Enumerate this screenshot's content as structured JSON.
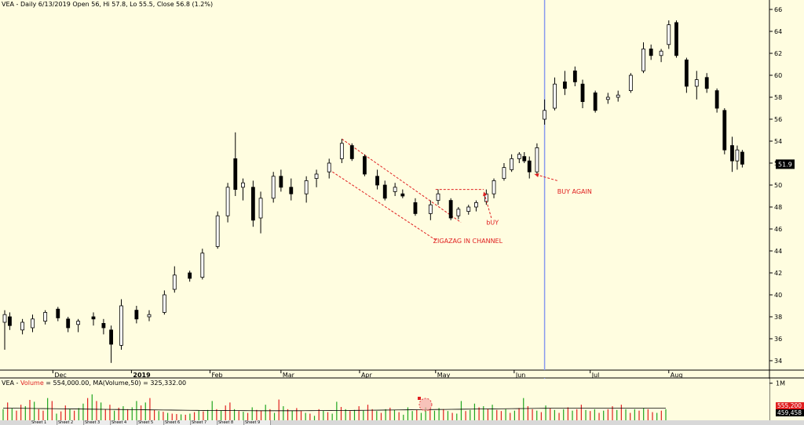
{
  "chart_data": {
    "type": "candlestick",
    "title": "VEA - Daily 6/13/2019 Open 56, Hi 57.8, Lo 55.5, Close 56.8 (1.2%)",
    "y_ticks": [
      "34",
      "36",
      "38",
      "40",
      "42",
      "44",
      "46",
      "48",
      "50",
      "52",
      "54",
      "56",
      "58",
      "60",
      "62",
      "64",
      "66"
    ],
    "ylim": [
      33,
      67
    ],
    "last_price": "51.9",
    "x_labels": [
      "Dec",
      "2019",
      "Feb",
      "Mar",
      "Apr",
      "May",
      "Jun",
      "Jul",
      "Aug"
    ],
    "x_label_dates": [
      "2018-12-01",
      "2019-01-01",
      "2019-02-01",
      "2019-03-01",
      "2019-04-01",
      "2019-05-01",
      "2019-06-01",
      "2019-07-01",
      "2019-08-01"
    ],
    "xlim": [
      "2018-11-12",
      "2019-09-06"
    ],
    "marker_date": "2019-06-13",
    "candles": [
      {
        "date": "2018-11-12",
        "o": 37.5,
        "h": 38.6,
        "l": 35.0,
        "c": 38.2
      },
      {
        "date": "2018-11-14",
        "o": 38.0,
        "h": 38.4,
        "l": 36.8,
        "c": 37.2
      },
      {
        "date": "2018-11-19",
        "o": 36.8,
        "h": 37.8,
        "l": 36.4,
        "c": 37.5
      },
      {
        "date": "2018-11-23",
        "o": 37.0,
        "h": 38.2,
        "l": 36.6,
        "c": 37.8
      },
      {
        "date": "2018-11-28",
        "o": 37.6,
        "h": 38.6,
        "l": 37.3,
        "c": 38.4
      },
      {
        "date": "2018-12-03",
        "o": 38.7,
        "h": 38.9,
        "l": 37.6,
        "c": 37.9
      },
      {
        "date": "2018-12-07",
        "o": 37.8,
        "h": 38.0,
        "l": 36.6,
        "c": 37.0
      },
      {
        "date": "2018-12-11",
        "o": 37.3,
        "h": 37.8,
        "l": 36.6,
        "c": 37.6
      },
      {
        "date": "2018-12-17",
        "o": 38.0,
        "h": 38.4,
        "l": 37.2,
        "c": 37.8
      },
      {
        "date": "2018-12-21",
        "o": 37.4,
        "h": 37.8,
        "l": 36.4,
        "c": 37.0
      },
      {
        "date": "2018-12-24",
        "o": 36.8,
        "h": 37.2,
        "l": 33.8,
        "c": 35.5
      },
      {
        "date": "2018-12-28",
        "o": 35.4,
        "h": 39.6,
        "l": 35.0,
        "c": 39.0
      },
      {
        "date": "2019-01-03",
        "o": 38.6,
        "h": 39.0,
        "l": 37.4,
        "c": 37.8
      },
      {
        "date": "2019-01-08",
        "o": 38.0,
        "h": 38.6,
        "l": 37.6,
        "c": 38.2
      },
      {
        "date": "2019-01-14",
        "o": 38.4,
        "h": 40.4,
        "l": 38.2,
        "c": 40.0
      },
      {
        "date": "2019-01-18",
        "o": 40.5,
        "h": 42.6,
        "l": 40.2,
        "c": 41.8
      },
      {
        "date": "2019-01-24",
        "o": 42.0,
        "h": 42.2,
        "l": 41.2,
        "c": 41.5
      },
      {
        "date": "2019-01-29",
        "o": 41.6,
        "h": 44.2,
        "l": 41.4,
        "c": 43.8
      },
      {
        "date": "2019-02-04",
        "o": 44.4,
        "h": 47.6,
        "l": 44.2,
        "c": 47.2
      },
      {
        "date": "2019-02-08",
        "o": 47.2,
        "h": 50.2,
        "l": 46.6,
        "c": 49.8
      },
      {
        "date": "2019-02-11",
        "o": 52.4,
        "h": 54.8,
        "l": 49.0,
        "c": 49.6
      },
      {
        "date": "2019-02-14",
        "o": 49.8,
        "h": 50.6,
        "l": 48.6,
        "c": 50.2
      },
      {
        "date": "2019-02-18",
        "o": 49.8,
        "h": 50.4,
        "l": 46.2,
        "c": 46.8
      },
      {
        "date": "2019-02-21",
        "o": 47.0,
        "h": 49.4,
        "l": 45.6,
        "c": 48.8
      },
      {
        "date": "2019-02-26",
        "o": 48.8,
        "h": 51.2,
        "l": 48.4,
        "c": 50.8
      },
      {
        "date": "2019-03-01",
        "o": 50.8,
        "h": 51.4,
        "l": 49.4,
        "c": 49.8
      },
      {
        "date": "2019-03-05",
        "o": 49.8,
        "h": 50.6,
        "l": 48.6,
        "c": 49.2
      },
      {
        "date": "2019-03-11",
        "o": 49.2,
        "h": 50.8,
        "l": 48.4,
        "c": 50.4
      },
      {
        "date": "2019-03-15",
        "o": 50.6,
        "h": 51.4,
        "l": 49.8,
        "c": 51.0
      },
      {
        "date": "2019-03-20",
        "o": 51.2,
        "h": 52.4,
        "l": 50.6,
        "c": 52.0
      },
      {
        "date": "2019-03-25",
        "o": 52.4,
        "h": 54.2,
        "l": 52.0,
        "c": 53.8
      },
      {
        "date": "2019-03-29",
        "o": 53.6,
        "h": 53.8,
        "l": 52.2,
        "c": 52.4
      },
      {
        "date": "2019-04-03",
        "o": 52.6,
        "h": 52.8,
        "l": 50.8,
        "c": 51.0
      },
      {
        "date": "2019-04-08",
        "o": 50.8,
        "h": 51.4,
        "l": 49.6,
        "c": 50.0
      },
      {
        "date": "2019-04-11",
        "o": 50.0,
        "h": 50.4,
        "l": 48.6,
        "c": 48.8
      },
      {
        "date": "2019-04-15",
        "o": 49.4,
        "h": 50.2,
        "l": 49.0,
        "c": 49.8
      },
      {
        "date": "2019-04-18",
        "o": 49.2,
        "h": 49.6,
        "l": 48.8,
        "c": 49.0
      },
      {
        "date": "2019-04-23",
        "o": 48.4,
        "h": 48.8,
        "l": 47.2,
        "c": 47.4
      },
      {
        "date": "2019-04-29",
        "o": 47.4,
        "h": 48.6,
        "l": 46.8,
        "c": 48.2
      },
      {
        "date": "2019-05-02",
        "o": 48.6,
        "h": 49.6,
        "l": 48.2,
        "c": 49.2
      },
      {
        "date": "2019-05-07",
        "o": 48.6,
        "h": 48.8,
        "l": 46.8,
        "c": 47.0
      },
      {
        "date": "2019-05-10",
        "o": 47.2,
        "h": 48.0,
        "l": 46.9,
        "c": 47.8
      },
      {
        "date": "2019-05-14",
        "o": 47.6,
        "h": 48.2,
        "l": 47.3,
        "c": 48.0
      },
      {
        "date": "2019-05-17",
        "o": 48.0,
        "h": 48.6,
        "l": 47.6,
        "c": 48.4
      },
      {
        "date": "2019-05-21",
        "o": 48.5,
        "h": 49.6,
        "l": 48.2,
        "c": 49.2
      },
      {
        "date": "2019-05-24",
        "o": 49.2,
        "h": 50.6,
        "l": 48.8,
        "c": 50.4
      },
      {
        "date": "2019-05-28",
        "o": 50.6,
        "h": 52.0,
        "l": 50.4,
        "c": 51.6
      },
      {
        "date": "2019-05-31",
        "o": 51.4,
        "h": 52.8,
        "l": 51.2,
        "c": 52.4
      },
      {
        "date": "2019-06-03",
        "o": 52.4,
        "h": 53.0,
        "l": 52.0,
        "c": 52.8
      },
      {
        "date": "2019-06-05",
        "o": 52.6,
        "h": 53.0,
        "l": 52.0,
        "c": 52.2
      },
      {
        "date": "2019-06-07",
        "o": 52.2,
        "h": 52.6,
        "l": 50.6,
        "c": 51.2
      },
      {
        "date": "2019-06-10",
        "o": 51.2,
        "h": 53.8,
        "l": 51.0,
        "c": 53.4
      },
      {
        "date": "2019-06-13",
        "o": 56.0,
        "h": 57.8,
        "l": 55.5,
        "c": 56.8
      },
      {
        "date": "2019-06-17",
        "o": 57.0,
        "h": 59.8,
        "l": 56.8,
        "c": 59.2
      },
      {
        "date": "2019-06-21",
        "o": 59.4,
        "h": 60.4,
        "l": 58.2,
        "c": 58.8
      },
      {
        "date": "2019-06-25",
        "o": 60.4,
        "h": 60.8,
        "l": 59.0,
        "c": 59.4
      },
      {
        "date": "2019-06-28",
        "o": 59.2,
        "h": 59.6,
        "l": 57.0,
        "c": 57.6
      },
      {
        "date": "2019-07-03",
        "o": 58.4,
        "h": 58.6,
        "l": 56.6,
        "c": 56.8
      },
      {
        "date": "2019-07-08",
        "o": 57.8,
        "h": 58.4,
        "l": 57.4,
        "c": 58.0
      },
      {
        "date": "2019-07-12",
        "o": 58.0,
        "h": 58.6,
        "l": 57.6,
        "c": 58.2
      },
      {
        "date": "2019-07-17",
        "o": 58.6,
        "h": 60.2,
        "l": 58.4,
        "c": 60.0
      },
      {
        "date": "2019-07-22",
        "o": 60.4,
        "h": 63.0,
        "l": 60.2,
        "c": 62.4
      },
      {
        "date": "2019-07-25",
        "o": 62.4,
        "h": 62.8,
        "l": 61.4,
        "c": 61.8
      },
      {
        "date": "2019-07-29",
        "o": 61.8,
        "h": 62.4,
        "l": 61.2,
        "c": 62.2
      },
      {
        "date": "2019-08-01",
        "o": 62.8,
        "h": 65.0,
        "l": 62.4,
        "c": 64.6
      },
      {
        "date": "2019-08-04",
        "o": 64.8,
        "h": 65.0,
        "l": 61.6,
        "c": 61.8
      },
      {
        "date": "2019-08-08",
        "o": 61.4,
        "h": 61.6,
        "l": 58.4,
        "c": 59.0
      },
      {
        "date": "2019-08-12",
        "o": 59.0,
        "h": 60.4,
        "l": 57.8,
        "c": 59.6
      },
      {
        "date": "2019-08-16",
        "o": 59.8,
        "h": 60.2,
        "l": 58.4,
        "c": 58.8
      },
      {
        "date": "2019-08-20",
        "o": 58.6,
        "h": 58.8,
        "l": 56.6,
        "c": 57.0
      },
      {
        "date": "2019-08-23",
        "o": 56.8,
        "h": 57.0,
        "l": 52.8,
        "c": 53.2
      },
      {
        "date": "2019-08-26",
        "o": 53.6,
        "h": 54.4,
        "l": 51.2,
        "c": 52.2
      },
      {
        "date": "2019-08-28",
        "o": 52.2,
        "h": 53.6,
        "l": 51.4,
        "c": 53.2
      },
      {
        "date": "2019-08-30",
        "o": 53.0,
        "h": 53.2,
        "l": 51.6,
        "c": 51.9
      }
    ],
    "annotations": [
      {
        "text": "ZIGAZAG IN CHANNEL",
        "date": "2019-04-30",
        "y": 44.7
      },
      {
        "text": "bUY",
        "date": "2019-05-21",
        "y": 46.4
      },
      {
        "text": "BUY AGAIN",
        "date": "2019-06-18",
        "y": 49.2
      }
    ],
    "channel": {
      "upper": [
        {
          "date": "2019-03-25",
          "y": 54.2
        },
        {
          "date": "2019-05-11",
          "y": 46.6
        }
      ],
      "lower": [
        {
          "date": "2019-03-20",
          "y": 51.4
        },
        {
          "date": "2019-05-01",
          "y": 45.0
        }
      ],
      "top": [
        {
          "date": "2019-05-01",
          "y": 49.6
        },
        {
          "date": "2019-05-20",
          "y": 49.6
        }
      ]
    },
    "arrows": [
      {
        "from": {
          "date": "2019-05-23",
          "y": 47.0
        },
        "to": {
          "date": "2019-05-20",
          "y": 49.4
        }
      },
      {
        "from": {
          "date": "2019-06-18",
          "y": 50.4
        },
        "to": {
          "date": "2019-06-09",
          "y": 51.0
        }
      }
    ],
    "volume": {
      "title": "VEA - Volume = 554,000.00, MA(Volume,50) = 325,332.00",
      "title_prefix": "VEA - ",
      "title_label": "Volume",
      "title_rest": " = 554,000.00, MA(Volume,50) = 325,332.00",
      "tick": "1M",
      "label_top": "555,200",
      "label_bottom": "459,458",
      "values": [
        300,
        480,
        320,
        260,
        420,
        380,
        550,
        500,
        300,
        260,
        600,
        520,
        180,
        240,
        400,
        300,
        260,
        330,
        450,
        600,
        700,
        520,
        480,
        300,
        420,
        260,
        340,
        380,
        300,
        350,
        520,
        400,
        480,
        600,
        280,
        250,
        230,
        200,
        180,
        170,
        160,
        150,
        180,
        220,
        260,
        240,
        280,
        520,
        300,
        260,
        400,
        480,
        300,
        250,
        230,
        200,
        350,
        280,
        260,
        420,
        300,
        200,
        560,
        380,
        300,
        260,
        330,
        250,
        200,
        180,
        120,
        300,
        260,
        220,
        180,
        500,
        360,
        300,
        250,
        280,
        380,
        260,
        420,
        300,
        250,
        200,
        300,
        340,
        280,
        220,
        150,
        350,
        250,
        280,
        200,
        350,
        300,
        260,
        330,
        300,
        250,
        200,
        180,
        520,
        250,
        280,
        450,
        350,
        380,
        300,
        420,
        280,
        250,
        300,
        200,
        260,
        330,
        600,
        380,
        300,
        260,
        220,
        400,
        320,
        280,
        200,
        300,
        350,
        260,
        300,
        420,
        280,
        250,
        300,
        200,
        260,
        300,
        380,
        280,
        420,
        300,
        200,
        300,
        260,
        330,
        300,
        220,
        200,
        260,
        300
      ],
      "colors": [
        "green",
        "red",
        "green",
        "red",
        "red",
        "green",
        "red",
        "green",
        "red",
        "red",
        "green",
        "red",
        "green",
        "red",
        "red",
        "green",
        "red",
        "green",
        "green",
        "red",
        "green",
        "red",
        "green",
        "red",
        "red",
        "green",
        "red",
        "green",
        "red",
        "green",
        "green",
        "red",
        "green",
        "red",
        "red",
        "green",
        "red",
        "green",
        "red",
        "red",
        "green",
        "red",
        "green",
        "red",
        "green",
        "red",
        "green",
        "green",
        "red",
        "green",
        "red",
        "red",
        "green",
        "red",
        "green",
        "red",
        "green",
        "red",
        "red",
        "green",
        "red",
        "green",
        "red",
        "green",
        "red",
        "green",
        "red",
        "red",
        "green",
        "red",
        "green",
        "red",
        "green",
        "red",
        "green",
        "green",
        "red",
        "green",
        "red",
        "green",
        "red",
        "green",
        "red",
        "red",
        "green",
        "red",
        "green",
        "red",
        "green",
        "red",
        "green",
        "green",
        "green",
        "red",
        "green",
        "green",
        "red",
        "green",
        "green",
        "red",
        "green",
        "red",
        "green",
        "green",
        "red",
        "green",
        "green",
        "red",
        "green",
        "red",
        "green",
        "red",
        "red",
        "green",
        "red",
        "green",
        "red",
        "green",
        "red",
        "red",
        "green",
        "red",
        "green",
        "red",
        "green",
        "red",
        "green",
        "red",
        "green",
        "red",
        "red",
        "green",
        "red",
        "green",
        "red",
        "green",
        "red",
        "red",
        "green",
        "red",
        "green",
        "red",
        "green",
        "red",
        "green",
        "red",
        "red",
        "green",
        "red",
        "green"
      ],
      "ma": [
        330,
        328,
        325,
        322,
        320,
        318,
        316,
        315,
        312,
        310,
        308,
        305,
        303,
        300,
        298,
        296,
        294,
        292,
        290,
        288,
        286,
        284,
        282,
        280,
        278,
        276,
        274,
        272,
        270,
        268,
        266,
        265,
        264,
        263,
        262,
        261,
        260,
        259,
        258,
        258,
        258,
        258,
        258,
        258,
        258,
        259,
        260,
        261,
        262,
        263,
        264,
        265,
        266,
        268,
        270,
        272,
        274,
        276,
        278,
        280,
        282,
        284,
        286,
        288,
        290,
        292,
        294,
        296,
        298,
        300,
        302,
        304,
        306,
        308,
        310,
        312,
        314,
        316,
        318,
        320,
        322,
        324,
        325,
        325,
        325,
        325,
        325,
        325,
        325,
        325,
        325,
        325,
        325,
        325,
        325,
        325,
        325,
        325,
        325,
        325
      ]
    },
    "colors": {
      "background": "#fffde0",
      "up_candle": "#ffffff",
      "down_candle": "#000000",
      "annotation": "#e02020",
      "marker_line": "#8899ee",
      "volume_up": "#1fa51f",
      "volume_down": "#e01f1f",
      "price_label_bg": "#000000",
      "volume_label_top": "#e01f1f",
      "volume_label_bottom": "#000000"
    },
    "tabs": [
      "Sheet 1",
      "Sheet 2",
      "Sheet 3",
      "Sheet 4",
      "Sheet 5",
      "Sheet 6",
      "Sheet 7",
      "Sheet 8",
      "Sheet 9"
    ]
  }
}
